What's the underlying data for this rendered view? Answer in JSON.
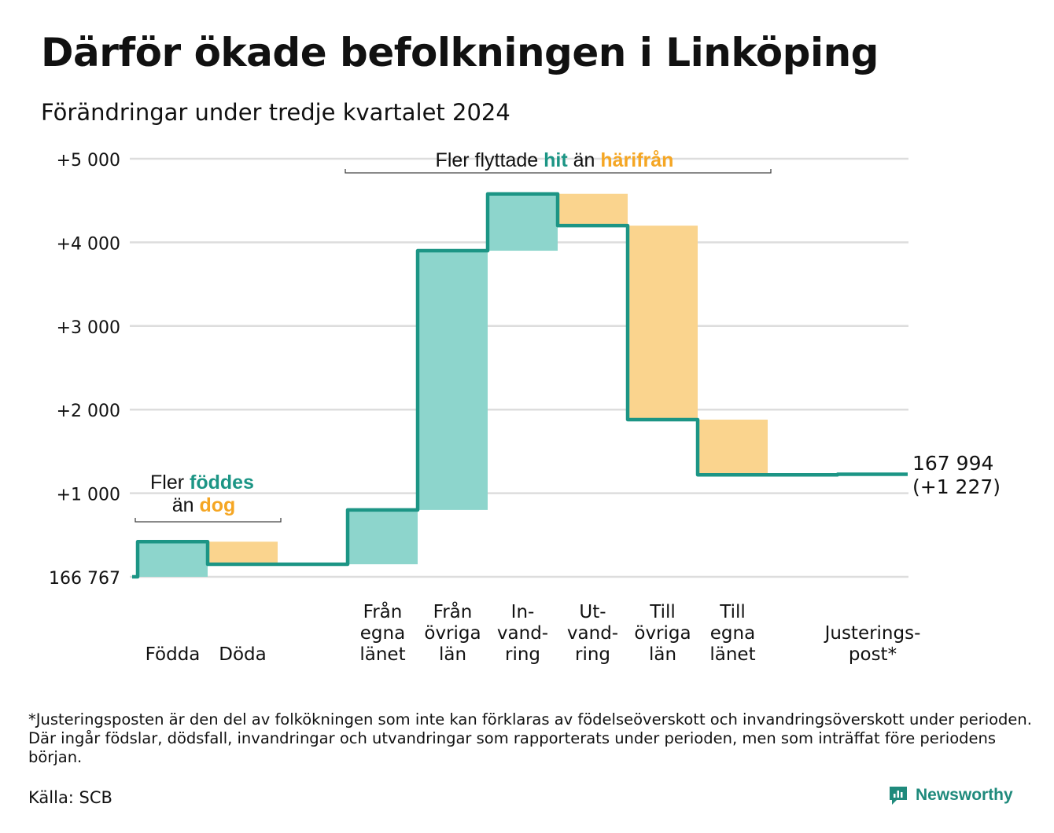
{
  "title": "Därför ökade befolkningen i Linköping",
  "subtitle": "Förändringar under tredje kvartalet 2024",
  "footnote": "*Justeringsposten är den del av folkökningen som inte kan förklaras av födelseöverskott och invandringsöverskott under perioden. Där ingår födslar, dödsfall, invandringar och utvandringar som rapporterats under perioden, men som inträffat före periodens början.",
  "source": "Källa: SCB",
  "brand": "Newsworthy",
  "colors": {
    "increase": "#8dd5cc",
    "decrease": "#fad48e",
    "line": "#1c9585",
    "hit": "#1c9585",
    "bort": "#f5a623",
    "grid": "#dddddd"
  },
  "chart_data": {
    "type": "waterfall",
    "start_label": "166 767",
    "end_label": "167 994",
    "end_change_label": "(+1 227)",
    "ylim": [
      0,
      5000
    ],
    "yticks": [
      0,
      1000,
      2000,
      3000,
      4000,
      5000
    ],
    "ytick_labels": [
      "166 767",
      "+1 000",
      "+2 000",
      "+3 000",
      "+4 000",
      "+5 000"
    ],
    "categories": [
      [
        "Födda"
      ],
      [
        "Döda"
      ],
      [
        ""
      ],
      [
        "Från",
        "egna",
        "länet"
      ],
      [
        "Från",
        "övriga",
        "län"
      ],
      [
        "In-",
        "vand-",
        "ring"
      ],
      [
        "Ut-",
        "vand-",
        "ring"
      ],
      [
        "Till",
        "övriga",
        "län"
      ],
      [
        "Till",
        "egna",
        "länet"
      ],
      [
        ""
      ],
      [
        "Justerings-",
        "post*"
      ]
    ],
    "steps": [
      {
        "from": 0,
        "to": 420
      },
      {
        "from": 420,
        "to": 150
      },
      {
        "from": 150,
        "to": 150
      },
      {
        "from": 150,
        "to": 800
      },
      {
        "from": 800,
        "to": 3900
      },
      {
        "from": 3900,
        "to": 4580
      },
      {
        "from": 4580,
        "to": 4200
      },
      {
        "from": 4200,
        "to": 1880
      },
      {
        "from": 1880,
        "to": 1220
      },
      {
        "from": 1220,
        "to": 1220
      },
      {
        "from": 1220,
        "to": 1227
      }
    ],
    "annotations": [
      {
        "id": "birth",
        "parts": [
          {
            "text": "Fler ",
            "color": "plain"
          },
          {
            "text": "föddes",
            "color": "hit"
          },
          {
            "text": "än ",
            "color": "plain"
          },
          {
            "text": "dog",
            "color": "bort"
          }
        ],
        "bracket_from": 0,
        "bracket_to": 1
      },
      {
        "id": "move",
        "parts": [
          {
            "text": "Fler flyttade ",
            "color": "plain"
          },
          {
            "text": "hit",
            "color": "hit"
          },
          {
            "text": " än ",
            "color": "plain"
          },
          {
            "text": "härifrån",
            "color": "bort"
          }
        ],
        "bracket_from": 3,
        "bracket_to": 8
      }
    ]
  }
}
